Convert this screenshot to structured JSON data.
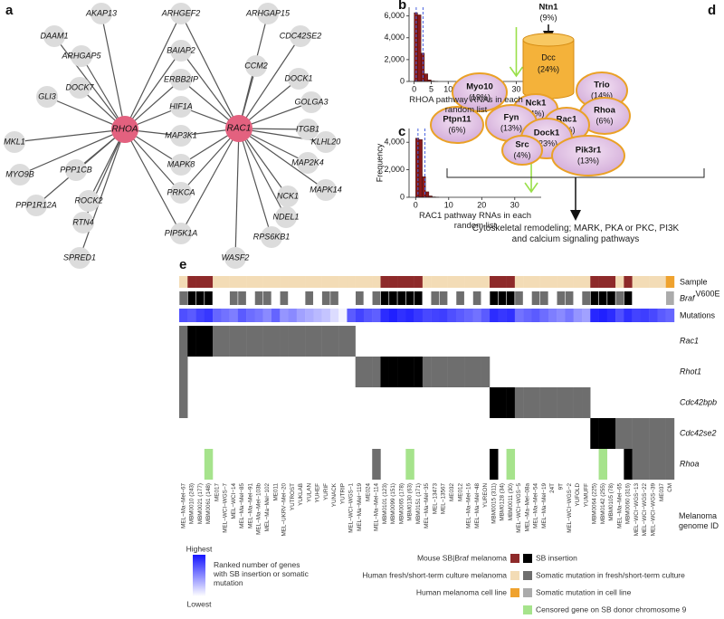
{
  "panel_labels": [
    "a",
    "b",
    "c",
    "d",
    "e"
  ],
  "network": {
    "hubs": [
      "RHOA",
      "RAC1"
    ],
    "genes": [
      "AKAP13",
      "ARHGEF2",
      "ARHGAP15",
      "DAAM1",
      "CDC42SE2",
      "ARHGAP5",
      "BAIAP2",
      "CCM2",
      "DOCK1",
      "DOCK7",
      "ERBB2IP",
      "GOLGA3",
      "GLI3",
      "HIF1A",
      "ITGB1",
      "MKL1",
      "MAP3K1",
      "KLHL20",
      "MYO9B",
      "PPP1CB",
      "MAPK8",
      "MAP2K4",
      "PPP1R12A",
      "ROCK2",
      "PRKCA",
      "NCK1",
      "MAPK14",
      "RTN4",
      "NDEL1",
      "PIP5K1A",
      "RPS6KB1",
      "SPRED1",
      "WASF2"
    ]
  },
  "chart_data": [
    {
      "type": "histogram",
      "bins": [
        0,
        1,
        2,
        3,
        4,
        5,
        6,
        7
      ],
      "counts": [
        6300,
        6100,
        2600,
        700,
        150,
        40,
        10
      ],
      "color": "#8b1a1a",
      "reference_lines": [
        0.6,
        2.6
      ],
      "reference_color": "#4a63e0",
      "observed": 30,
      "arrow_color": "#9ae04a",
      "xlim": [
        -1.5,
        32
      ],
      "ylim": [
        0,
        6800
      ],
      "xticks": [
        0,
        5,
        10,
        15,
        20,
        25,
        30
      ],
      "yticks": [
        0,
        {
          "value": 2000,
          "label": "2,000"
        },
        {
          "value": 4000,
          "label": "4,000"
        },
        {
          "value": 6000,
          "label": "6,000"
        }
      ],
      "xlabel": "RHOA pathway RNAs in each random list"
    },
    {
      "type": "histogram",
      "bins": [
        0,
        1,
        2,
        3,
        4,
        5,
        6,
        7
      ],
      "counts": [
        4300,
        4200,
        1500,
        400,
        100,
        30,
        8
      ],
      "color": "#8b1a1a",
      "reference_lines": [
        0.7,
        2.8
      ],
      "reference_color": "#4a63e0",
      "observed": 35,
      "arrow_color": "#9ae04a",
      "xlim": [
        -2,
        38
      ],
      "ylim": [
        0,
        5000
      ],
      "xticks": [
        0,
        10,
        20,
        30
      ],
      "yticks": [
        0,
        {
          "value": 2000,
          "label": "2,000"
        },
        {
          "value": 4000,
          "label": "4,000"
        }
      ],
      "xlabel": "RAC1 pathway RNAs in each random list",
      "ylabel": "Frequency"
    }
  ],
  "pathway": {
    "nodes": [
      {
        "name": "Ntn1",
        "share": "(9%)"
      },
      {
        "name": "Dcc",
        "share": "(24%)"
      },
      {
        "name": "Myo10",
        "share": "(19%)"
      },
      {
        "name": "Trio",
        "share": "(14%)"
      },
      {
        "name": "Nck1",
        "share": "(4%)"
      },
      {
        "name": "Rhoa",
        "share": "(6%)"
      },
      {
        "name": "Ptpn11",
        "share": "(6%)"
      },
      {
        "name": "Fyn",
        "share": "(13%)"
      },
      {
        "name": "Rac1",
        "share": "(4%)"
      },
      {
        "name": "Dock1",
        "share": "(23%)"
      },
      {
        "name": "Src",
        "share": "(4%)"
      },
      {
        "name": "Pik3r1",
        "share": "(13%)"
      }
    ],
    "summary": "Cytoskeletal remodeling; MARK, PKA or PKC, PI3K and calcium signaling pathways"
  },
  "heatmap": {
    "column_labels": [
      "MEL−Ma−Mel−67",
      "MBM0010 (243)",
      "MBM0021 (177)",
      "MBM0061 (148)",
      "ME017",
      "MEL−WCI−WGS−7",
      "MEL−WCI−14",
      "MEL−Ma−Mel−85",
      "MEL−Ma−Mel−91",
      "MEL−Ma−Mel−103b",
      "MEL−Ma−Mel−102",
      "ME011",
      "MEL−UKRV−Mel−20",
      "YUTROST",
      "YUKLAB",
      "YULAN",
      "YUHEF",
      "YURIF",
      "YUNACK",
      "YUTRIP",
      "MEL−WCI−WGS−1",
      "MEL−Ma−Mel−119",
      "ME024",
      "MEL−Ma−Mel−114",
      "MBM0101 (123)",
      "MBM0099 (151)",
      "MBM0065 (178)",
      "MBM0130 (63)",
      "MBM0151 (171)",
      "MEL−Ma−Mel−35",
      "MEL−13473",
      "MEL−13567",
      "ME032",
      "ME012",
      "MEL−Ma−Mel−16",
      "MEL−Ma−Mel−48",
      "YUREON",
      "MBM0015 (311)",
      "MBM0128 (34)",
      "MBM0011 (30)",
      "MEL−WCI−WGS−5",
      "MEL−Ma−Mel−08a",
      "MEL−Ma−Mel−54",
      "MEL−Ma−Mel−19",
      "24T",
      "9T",
      "MEL−WCI−WGS−2",
      "YUFOLD",
      "YUMUFF",
      "MBM0064 (225)",
      "MBM0142 (255)",
      "MBM0105 (78)",
      "MEL−Ma−Mel−65",
      "MBM0060 (316)",
      "MEL−WCI−WGS−13",
      "MEL−WCI−WGS−22",
      "MEL−WCI−WGS−39",
      "ME037",
      "CM"
    ],
    "xlabel": "Melanoma genome ID",
    "sample_row": {
      "label": "Sample",
      "cells": [
        1,
        0,
        0,
        0,
        1,
        1,
        1,
        1,
        1,
        1,
        1,
        1,
        1,
        1,
        1,
        1,
        1,
        1,
        1,
        1,
        1,
        1,
        1,
        1,
        0,
        0,
        0,
        0,
        0,
        1,
        1,
        1,
        1,
        1,
        1,
        1,
        1,
        0,
        0,
        0,
        1,
        1,
        1,
        1,
        1,
        1,
        1,
        1,
        1,
        0,
        0,
        0,
        1,
        0,
        1,
        1,
        1,
        1,
        2
      ]
    },
    "braf_row": {
      "label": "Braf",
      "superscript": "V600E",
      "cells": [
        1,
        0,
        0,
        0,
        null,
        null,
        1,
        1,
        null,
        1,
        1,
        null,
        1,
        null,
        null,
        1,
        null,
        1,
        1,
        null,
        null,
        1,
        null,
        1,
        0,
        0,
        0,
        0,
        0,
        null,
        1,
        1,
        null,
        1,
        null,
        1,
        null,
        0,
        0,
        0,
        1,
        null,
        1,
        1,
        null,
        1,
        1,
        null,
        1,
        0,
        0,
        0,
        1,
        0,
        null,
        null,
        null,
        null,
        2
      ]
    },
    "mutation_row": {
      "label": "Mutations",
      "ranks": [
        0.75,
        0.7,
        0.8,
        0.85,
        0.65,
        0.6,
        0.55,
        0.7,
        0.62,
        0.58,
        0.5,
        0.66,
        0.45,
        0.5,
        0.4,
        0.35,
        0.3,
        0.25,
        0.15,
        0.05,
        0.7,
        0.8,
        0.72,
        0.68,
        0.9,
        0.95,
        0.88,
        0.92,
        0.85,
        0.78,
        0.8,
        0.82,
        0.75,
        0.7,
        0.65,
        0.6,
        0.7,
        0.9,
        0.85,
        0.88,
        0.6,
        0.65,
        0.7,
        0.62,
        0.55,
        0.5,
        0.58,
        0.45,
        0.4,
        0.92,
        0.95,
        0.9,
        0.75,
        0.88,
        0.8,
        0.82,
        0.78,
        0.7,
        0.65
      ]
    },
    "gene_rows": [
      {
        "label": "Rac1",
        "cells": [
          1,
          0,
          0,
          0,
          1,
          1,
          1,
          1,
          1,
          1,
          1,
          1,
          1,
          1,
          1,
          1,
          1,
          1,
          1,
          1,
          1,
          null,
          null,
          null,
          null,
          null,
          null,
          null,
          null,
          null,
          null,
          null,
          null,
          null,
          null,
          null,
          null,
          null,
          null,
          null,
          null,
          null,
          null,
          null,
          null,
          null,
          null,
          null,
          null,
          null,
          null,
          null,
          null,
          null,
          null,
          null,
          null,
          null,
          null
        ]
      },
      {
        "label": "Rhot1",
        "cells": [
          1,
          null,
          null,
          null,
          null,
          null,
          null,
          null,
          null,
          null,
          null,
          null,
          null,
          null,
          null,
          null,
          null,
          null,
          null,
          null,
          null,
          1,
          1,
          1,
          0,
          0,
          0,
          0,
          0,
          1,
          1,
          1,
          1,
          1,
          1,
          1,
          1,
          null,
          null,
          null,
          null,
          null,
          null,
          null,
          null,
          null,
          null,
          null,
          null,
          null,
          null,
          null,
          null,
          null,
          null,
          null,
          null,
          null,
          null
        ]
      },
      {
        "label": "Cdc42bpb",
        "cells": [
          1,
          null,
          null,
          null,
          null,
          null,
          null,
          null,
          null,
          null,
          null,
          null,
          null,
          null,
          null,
          null,
          null,
          null,
          null,
          null,
          null,
          null,
          null,
          null,
          null,
          null,
          null,
          null,
          null,
          null,
          null,
          null,
          null,
          null,
          null,
          null,
          null,
          0,
          0,
          0,
          1,
          1,
          1,
          1,
          1,
          1,
          1,
          1,
          1,
          null,
          null,
          null,
          null,
          null,
          null,
          null,
          null,
          null,
          null
        ]
      },
      {
        "label": "Cdc42se2",
        "cells": [
          null,
          null,
          null,
          null,
          null,
          null,
          null,
          null,
          null,
          null,
          null,
          null,
          null,
          null,
          null,
          null,
          null,
          null,
          null,
          null,
          null,
          null,
          null,
          null,
          null,
          null,
          null,
          null,
          null,
          null,
          null,
          null,
          null,
          null,
          null,
          null,
          null,
          null,
          null,
          null,
          null,
          null,
          null,
          null,
          null,
          null,
          null,
          null,
          null,
          0,
          0,
          0,
          1,
          1,
          1,
          1,
          1,
          1,
          1
        ]
      },
      {
        "label": "Rhoa",
        "cells": [
          null,
          null,
          null,
          3,
          null,
          null,
          null,
          null,
          null,
          null,
          null,
          null,
          null,
          null,
          null,
          null,
          null,
          null,
          null,
          null,
          null,
          null,
          null,
          1,
          null,
          null,
          null,
          3,
          null,
          null,
          null,
          null,
          null,
          null,
          null,
          null,
          null,
          0,
          null,
          3,
          null,
          null,
          null,
          null,
          null,
          null,
          null,
          null,
          null,
          null,
          3,
          null,
          null,
          0,
          1,
          1,
          1,
          1,
          1
        ]
      }
    ],
    "sample_legend": [
      {
        "label": "Mouse SB|Braf melanoma",
        "color": "#8e2a2a"
      },
      {
        "label": "Human fresh/short-term culture melanoma",
        "color": "#f3dcb6"
      },
      {
        "label": "Human melanoma cell line",
        "color": "#efa22e"
      }
    ],
    "status_legend": [
      {
        "label": "SB insertion",
        "color": "#000000"
      },
      {
        "label": "Somatic mutation in fresh/short-term culture",
        "color": "#6e6e6e"
      },
      {
        "label": "Somatic mutation in cell line",
        "color": "#ababab"
      },
      {
        "label": "Censored gene on SB donor chromosome 9",
        "color": "#a6e38c"
      }
    ],
    "gradient_legend": {
      "high": "Highest",
      "low": "Lowest",
      "title": "Ranked number of genes with SB insertion or somatic mutation",
      "colors": [
        "#1414ff",
        "#ffffff"
      ]
    }
  }
}
